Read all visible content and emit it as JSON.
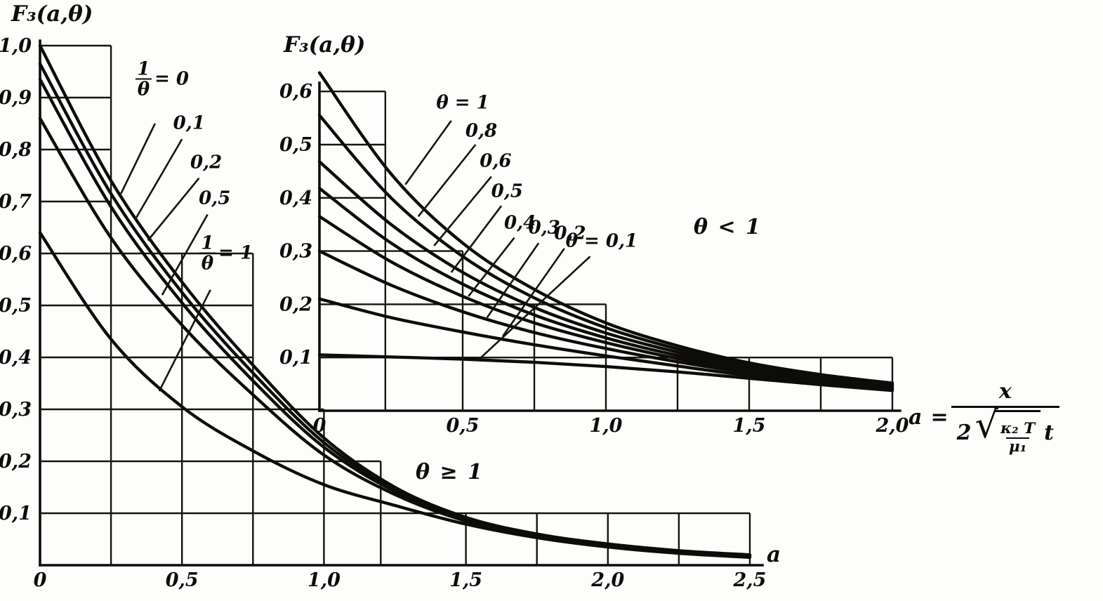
{
  "figure": {
    "background": "#fdfdfb",
    "ink": "#0d0c0a",
    "description": "Scanned book figure: two line charts of the function F3(a, theta) versus a, with an inset chart for theta < 1 and a formula defining a"
  },
  "formula": {
    "lhs": "a",
    "equals": "=",
    "numerator": "x",
    "coefficient": "2",
    "radical_sign": "√",
    "radical_numerator": "κ₂ T",
    "radical_denominator": "μ₁",
    "trailing": "t"
  },
  "chart_data": [
    {
      "id": "main",
      "type": "line",
      "title": "F₃(a,θ)",
      "xlabel": "a",
      "ylabel": "F₃(a,θ)",
      "region_label": "θ ≥ 1",
      "legend_position": "inline labels with leader lines",
      "grid": "partial staircase boxes",
      "xlim": [
        0,
        2.5
      ],
      "ylim": [
        0,
        1.0
      ],
      "xticks": {
        "values": [
          0,
          0.5,
          1.0,
          1.5,
          2.0,
          2.5
        ],
        "labels": [
          "0",
          "0,5",
          "1,0",
          "1,5",
          "2,0",
          "2,5"
        ]
      },
      "yticks": {
        "values": [
          0.1,
          0.2,
          0.3,
          0.4,
          0.5,
          0.6,
          0.7,
          0.8,
          0.9,
          1.0
        ],
        "labels": [
          "0,1",
          "0,2",
          "0,3",
          "0,4",
          "0,5",
          "0,6",
          "0,7",
          "0,8",
          "0,9",
          "1,0"
        ]
      },
      "grid_h": [
        [
          1.0,
          0.25
        ],
        [
          0.9,
          0.25
        ],
        [
          0.8,
          0.25
        ],
        [
          0.7,
          0.25
        ],
        [
          0.6,
          0.75
        ],
        [
          0.5,
          0.75
        ],
        [
          0.4,
          0.75
        ],
        [
          0.3,
          1.0
        ],
        [
          0.2,
          1.2
        ],
        [
          0.1,
          2.5
        ]
      ],
      "grid_v": [
        [
          0.25,
          1.0
        ],
        [
          0.5,
          0.6
        ],
        [
          0.75,
          0.6
        ],
        [
          1.0,
          0.3
        ],
        [
          1.2,
          0.2
        ],
        [
          1.5,
          0.1
        ],
        [
          1.75,
          0.1
        ],
        [
          2.0,
          0.1
        ],
        [
          2.25,
          0.1
        ],
        [
          2.5,
          0.1
        ]
      ],
      "x_samples": [
        0,
        0.25,
        0.5,
        0.75,
        1.0,
        1.25,
        1.5,
        1.75,
        2.0,
        2.25,
        2.5
      ],
      "series": [
        {
          "name": "1/θ = 0",
          "values": [
            1.0,
            0.74,
            0.545,
            0.385,
            0.245,
            0.15,
            0.092,
            0.06,
            0.041,
            0.028,
            0.02
          ]
        },
        {
          "name": "1/θ = 0,1",
          "values": [
            0.965,
            0.715,
            0.525,
            0.37,
            0.236,
            0.146,
            0.09,
            0.059,
            0.04,
            0.027,
            0.019
          ]
        },
        {
          "name": "1/θ = 0,2",
          "values": [
            0.935,
            0.69,
            0.505,
            0.355,
            0.227,
            0.142,
            0.088,
            0.058,
            0.039,
            0.026,
            0.018
          ]
        },
        {
          "name": "1/θ = 0,5",
          "values": [
            0.86,
            0.63,
            0.462,
            0.328,
            0.212,
            0.136,
            0.085,
            0.056,
            0.037,
            0.025,
            0.017
          ]
        },
        {
          "name": "1/θ = 1",
          "values": [
            0.64,
            0.435,
            0.305,
            0.22,
            0.155,
            0.115,
            0.079,
            0.053,
            0.035,
            0.023,
            0.015
          ]
        }
      ],
      "annotations": [
        {
          "frac_num": "1",
          "frac_den": "θ",
          "suffix": "= 0",
          "pos": [
            0.43,
            0.935
          ],
          "leader": [
            [
              0.405,
              0.85
            ],
            [
              0.285,
              0.715
            ]
          ]
        },
        {
          "text": "0,1",
          "pos": [
            0.525,
            0.85
          ],
          "leader": [
            [
              0.5,
              0.82
            ],
            [
              0.335,
              0.665
            ]
          ]
        },
        {
          "text": "0,2",
          "pos": [
            0.585,
            0.775
          ],
          "leader": [
            [
              0.56,
              0.745
            ],
            [
              0.38,
              0.625
            ]
          ]
        },
        {
          "text": "0,5",
          "pos": [
            0.615,
            0.705
          ],
          "leader": [
            [
              0.59,
              0.675
            ],
            [
              0.43,
              0.52
            ]
          ]
        },
        {
          "frac_num": "1",
          "frac_den": "θ",
          "suffix": "= 1",
          "pos": [
            0.655,
            0.6
          ],
          "leader": [
            [
              0.6,
              0.53
            ],
            [
              0.42,
              0.335
            ]
          ]
        }
      ]
    },
    {
      "id": "inset",
      "type": "line",
      "title": "F₃(a,θ)",
      "xlabel": "",
      "ylabel": "F₃(a,θ)",
      "region_label": "θ < 1",
      "legend_position": "inline labels with leader lines",
      "grid": "partial staircase boxes",
      "xlim": [
        0,
        2.0
      ],
      "ylim": [
        0,
        0.65
      ],
      "xticks": {
        "values": [
          0,
          0.5,
          1.0,
          1.5,
          2.0
        ],
        "labels": [
          "0",
          "0,5",
          "1,0",
          "1,5",
          "2,0"
        ]
      },
      "yticks": {
        "values": [
          0.1,
          0.2,
          0.3,
          0.4,
          0.5,
          0.6
        ],
        "labels": [
          "0,1",
          "0,2",
          "0,3",
          "0,4",
          "0,5",
          "0,6"
        ]
      },
      "grid_h": [
        [
          0.6,
          0.23
        ],
        [
          0.5,
          0.23
        ],
        [
          0.4,
          0.23
        ],
        [
          0.3,
          0.5
        ],
        [
          0.2,
          1.0
        ],
        [
          0.1,
          2.0
        ]
      ],
      "grid_v": [
        [
          0.23,
          0.6
        ],
        [
          0.5,
          0.3
        ],
        [
          0.75,
          0.2
        ],
        [
          1.0,
          0.2
        ],
        [
          1.25,
          0.1
        ],
        [
          1.5,
          0.1
        ],
        [
          1.75,
          0.1
        ],
        [
          2.0,
          0.1
        ]
      ],
      "x_samples": [
        0,
        0.25,
        0.5,
        0.75,
        1.0,
        1.25,
        1.5,
        1.75,
        2.0
      ],
      "series": [
        {
          "name": "θ = 1",
          "values": [
            0.635,
            0.445,
            0.315,
            0.228,
            0.165,
            0.122,
            0.09,
            0.068,
            0.052
          ]
        },
        {
          "name": "θ = 0,8",
          "values": [
            0.555,
            0.4,
            0.29,
            0.212,
            0.156,
            0.116,
            0.086,
            0.065,
            0.05
          ]
        },
        {
          "name": "θ = 0,6",
          "values": [
            0.468,
            0.35,
            0.26,
            0.194,
            0.146,
            0.11,
            0.082,
            0.063,
            0.048
          ]
        },
        {
          "name": "θ = 0,5",
          "values": [
            0.418,
            0.315,
            0.238,
            0.18,
            0.137,
            0.104,
            0.079,
            0.06,
            0.046
          ]
        },
        {
          "name": "θ = 0,4",
          "values": [
            0.365,
            0.28,
            0.215,
            0.165,
            0.128,
            0.098,
            0.075,
            0.058,
            0.044
          ]
        },
        {
          "name": "θ = 0,3",
          "values": [
            0.3,
            0.236,
            0.186,
            0.147,
            0.117,
            0.092,
            0.071,
            0.055,
            0.042
          ]
        },
        {
          "name": "θ = 0,2",
          "values": [
            0.21,
            0.175,
            0.148,
            0.124,
            0.103,
            0.084,
            0.066,
            0.052,
            0.04
          ]
        },
        {
          "name": "θ = 0,1",
          "values": [
            0.105,
            0.101,
            0.097,
            0.091,
            0.083,
            0.073,
            0.061,
            0.049,
            0.038
          ]
        }
      ],
      "annotations": [
        {
          "text": "θ = 1",
          "pos": [
            0.5,
            0.578
          ],
          "leader": [
            [
              0.46,
              0.545
            ],
            [
              0.3,
              0.425
            ]
          ]
        },
        {
          "text": "0,8",
          "pos": [
            0.565,
            0.525
          ],
          "leader": [
            [
              0.545,
              0.5
            ],
            [
              0.345,
              0.365
            ]
          ]
        },
        {
          "text": "0,6",
          "pos": [
            0.615,
            0.468
          ],
          "leader": [
            [
              0.6,
              0.44
            ],
            [
              0.4,
              0.31
            ]
          ]
        },
        {
          "text": "0,5",
          "pos": [
            0.655,
            0.412
          ],
          "leader": [
            [
              0.635,
              0.385
            ],
            [
              0.46,
              0.26
            ]
          ]
        },
        {
          "text": "0,4",
          "pos": [
            0.7,
            0.352
          ],
          "leader": [
            [
              0.68,
              0.325
            ],
            [
              0.52,
              0.215
            ]
          ]
        },
        {
          "text": "0,3",
          "pos": [
            0.785,
            0.343
          ],
          "leader": [
            [
              0.765,
              0.315
            ],
            [
              0.585,
              0.175
            ]
          ]
        },
        {
          "text": "0,2",
          "pos": [
            0.875,
            0.333
          ],
          "leader": [
            [
              0.855,
              0.305
            ],
            [
              0.64,
              0.14
            ]
          ]
        },
        {
          "text": "θ = 0,1",
          "pos": [
            0.985,
            0.318
          ],
          "leader": [
            [
              0.945,
              0.29
            ],
            [
              0.56,
              0.098
            ]
          ]
        }
      ]
    }
  ]
}
